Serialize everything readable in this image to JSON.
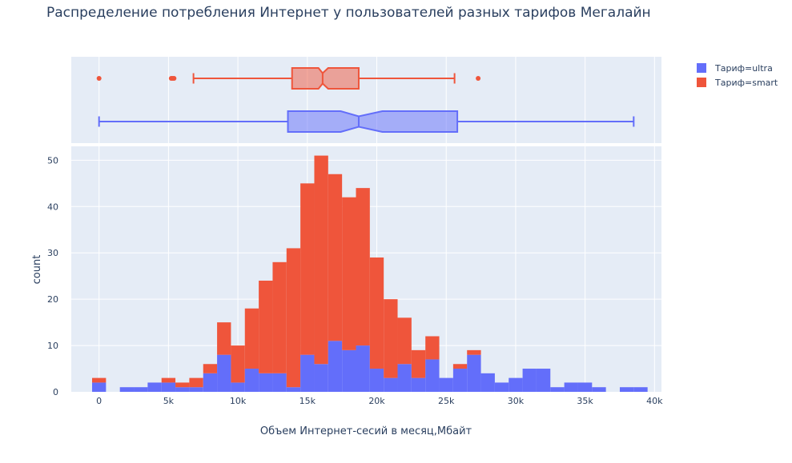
{
  "title": "Распределение потребления Интернет у пользователей разных тарифов Мегалайн",
  "xlabel": "Объем Интернет-сесий в месяц,Мбайт",
  "ylabel": "count",
  "colors": {
    "ultra": "#636efa",
    "smart": "#ef553b",
    "plot_bg": "#e5ecf6",
    "grid": "#ffffff"
  },
  "legend": [
    {
      "name": "Тариф=ultra",
      "color": "#636efa"
    },
    {
      "name": "Тариф=smart",
      "color": "#ef553b"
    }
  ],
  "chart_data": {
    "type": "bar",
    "barmode": "stack",
    "title": "Распределение потребления Интернет у пользователей разных тарифов Мегалайн",
    "xlabel": "Объем Интернет-сесий в месяц,Мбайт",
    "ylabel": "count",
    "xlim": [
      -2000,
      40500
    ],
    "ylim": [
      0,
      53
    ],
    "x_ticks": [
      0,
      5000,
      10000,
      15000,
      20000,
      25000,
      30000,
      35000,
      40000
    ],
    "x_tick_labels": [
      "0",
      "5k",
      "10k",
      "15k",
      "20k",
      "25k",
      "30k",
      "35k",
      "40k"
    ],
    "y_ticks": [
      0,
      10,
      20,
      30,
      40,
      50
    ],
    "y_tick_labels": [
      "0",
      "10",
      "20",
      "30",
      "40",
      "50"
    ],
    "bin_width": 1000,
    "bin_starts": [
      -500,
      500,
      1500,
      2500,
      3500,
      4500,
      5500,
      6500,
      7500,
      8500,
      9500,
      10500,
      11500,
      12500,
      13500,
      14500,
      15500,
      16500,
      17500,
      18500,
      19500,
      20500,
      21500,
      22500,
      23500,
      24500,
      25500,
      26500,
      27500,
      28500,
      29500,
      30500,
      31500,
      32500,
      33500,
      34500,
      35500,
      36500,
      37500,
      38500
    ],
    "series": [
      {
        "name": "Тариф=ultra",
        "values": [
          2,
          0,
          1,
          1,
          2,
          2,
          1,
          1,
          4,
          8,
          2,
          5,
          4,
          4,
          1,
          8,
          6,
          11,
          9,
          10,
          5,
          3,
          6,
          3,
          7,
          3,
          5,
          8,
          4,
          2,
          3,
          5,
          5,
          1,
          2,
          2,
          1,
          0,
          1,
          1
        ]
      },
      {
        "name": "Тариф=smart",
        "values": [
          1,
          0,
          0,
          0,
          0,
          1,
          1,
          2,
          2,
          7,
          8,
          13,
          20,
          24,
          30,
          37,
          45,
          36,
          33,
          34,
          24,
          17,
          10,
          6,
          5,
          0,
          1,
          1,
          0,
          0,
          0,
          0,
          0,
          0,
          0,
          0,
          0,
          0,
          0,
          0
        ]
      }
    ],
    "box": [
      {
        "name": "Тариф=smart",
        "lower_fence": 6800,
        "q1": 13900,
        "median": 16100,
        "q3": 18700,
        "upper_fence": 25600,
        "notch": [
          15800,
          16500
        ],
        "outliers": [
          0,
          5200,
          5300,
          5400,
          27300
        ]
      },
      {
        "name": "Тариф=ultra",
        "lower_fence": 0,
        "q1": 13600,
        "median": 18700,
        "q3": 25800,
        "upper_fence": 38500,
        "notch": [
          17400,
          20400
        ],
        "outliers": []
      }
    ],
    "legend_position": "top-right"
  }
}
